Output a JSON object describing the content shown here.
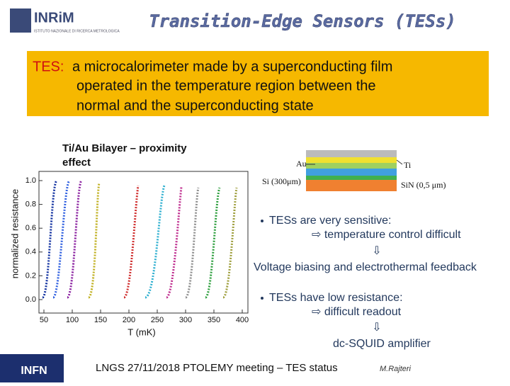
{
  "header": {
    "logo": "INRiM",
    "logo_subtitle": "ISTITUTO NAZIONALE DI RICERCA METROLOGICA",
    "title": "Transition-Edge Sensors (TESs)"
  },
  "definition": {
    "term": "TES:",
    "lines": [
      "a microcalorimeter made by a superconducting film",
      "operated in the temperature region between the",
      "normal and the superconducting state"
    ]
  },
  "figure": {
    "caption": [
      "Ti/Au Bilayer – proximity",
      "effect"
    ],
    "y_label": "normalized resistance",
    "x_label": "T (mK)",
    "y_ticks": [
      "0.0",
      "0.2",
      "0.4",
      "0.6",
      "0.8",
      "1.0"
    ],
    "x_ticks": [
      "50",
      "100",
      "150",
      "200",
      "250",
      "300",
      "350",
      "400"
    ]
  },
  "layers": {
    "labels": [
      "Au",
      "Ti",
      "Si (300μm)",
      "SiN (0,5 μm)"
    ]
  },
  "bullets": [
    {
      "text": "TESs are very sensitive:",
      "consequence": "⇨ temperature control difficult",
      "arrow": "⇩",
      "solution": "Voltage biasing and electrothermal feedback"
    },
    {
      "text": "TESs have low resistance:",
      "consequence": "⇨ difficult readout",
      "arrow": "⇩",
      "solution": "dc-SQUID amplifier"
    }
  ],
  "footer": {
    "event": "LNGS 27/11/2018  PTOLEMY  meeting – TES status",
    "author": "M.Rajteri",
    "logo": "INFN"
  }
}
